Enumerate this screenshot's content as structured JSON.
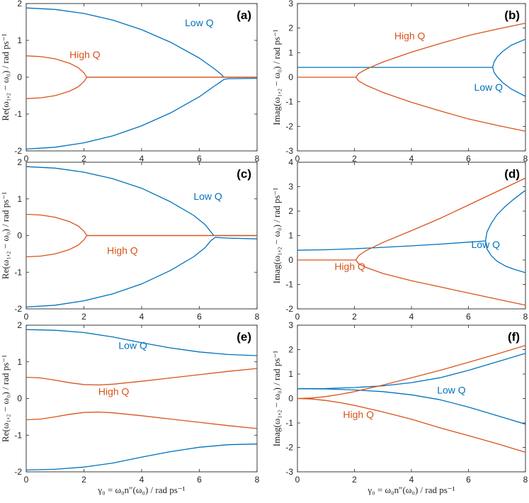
{
  "colors": {
    "low_q": "#0072BD",
    "high_q": "#D95319",
    "axis": "#262626"
  },
  "xaxis": {
    "ticks": [
      "0",
      "2",
      "4",
      "6",
      "8"
    ],
    "label": "γ₀ = ω₀n″(ω₀) / rad ps⁻¹",
    "xlim": [
      0,
      8
    ]
  },
  "chart_data": [
    {
      "id": "a",
      "panel_label": "(a)",
      "type": "line",
      "ylabel": "Re(ω₁,₂ − ω₀) / rad ps⁻¹",
      "ylim": [
        -2,
        2
      ],
      "yticks": [
        "-2",
        "-1",
        "0",
        "1",
        "2"
      ],
      "xlim": [
        0,
        8
      ],
      "xticks": [
        "0",
        "2",
        "4",
        "6",
        "8"
      ],
      "series": [
        {
          "name": "Low Q upper",
          "color_key": "low_q",
          "x": [
            0,
            1,
            2,
            3,
            4,
            5,
            6,
            6.5,
            6.75,
            6.85,
            7,
            8
          ],
          "y": [
            1.88,
            1.84,
            1.73,
            1.55,
            1.29,
            0.95,
            0.52,
            0.24,
            0.08,
            0.0,
            0.0,
            0.0
          ]
        },
        {
          "name": "Low Q lower",
          "color_key": "low_q",
          "x": [
            0,
            1,
            2,
            3,
            4,
            5,
            6,
            6.5,
            6.75,
            6.85,
            7,
            8
          ],
          "y": [
            -1.95,
            -1.9,
            -1.78,
            -1.59,
            -1.32,
            -0.97,
            -0.53,
            -0.25,
            -0.12,
            -0.06,
            -0.04,
            -0.03
          ]
        },
        {
          "name": "High Q upper",
          "color_key": "high_q",
          "x": [
            0,
            0.5,
            1,
            1.5,
            1.8,
            2.0,
            2.1,
            3,
            8
          ],
          "y": [
            0.58,
            0.56,
            0.5,
            0.38,
            0.26,
            0.12,
            0.0,
            0.0,
            0.0
          ]
        },
        {
          "name": "High Q lower",
          "color_key": "high_q",
          "x": [
            0,
            0.5,
            1,
            1.5,
            1.8,
            2.0,
            2.1,
            3,
            8
          ],
          "y": [
            -0.58,
            -0.56,
            -0.5,
            -0.38,
            -0.26,
            -0.12,
            0.0,
            0.0,
            0.0
          ]
        }
      ],
      "annotations": [
        {
          "text": "Low Q",
          "color_key": "low_q",
          "x": 5.5,
          "y": 1.38
        },
        {
          "text": "High Q",
          "color_key": "high_q",
          "x": 1.5,
          "y": 0.52
        }
      ]
    },
    {
      "id": "b",
      "panel_label": "(b)",
      "type": "line",
      "ylabel": "Imag(ω₁,₂ − ω₀) / rad ps⁻¹",
      "ylim": [
        -3,
        3
      ],
      "yticks": [
        "-3",
        "-2",
        "-1",
        "0",
        "1",
        "2",
        "3"
      ],
      "xlim": [
        0,
        8
      ],
      "xticks": [
        "0",
        "2",
        "4",
        "6",
        "8"
      ],
      "series": [
        {
          "name": "Low Q flat",
          "color_key": "low_q",
          "x": [
            0,
            4,
            6.85
          ],
          "y": [
            0.4,
            0.4,
            0.4
          ]
        },
        {
          "name": "Low Q upper",
          "color_key": "low_q",
          "x": [
            6.85,
            6.9,
            7.0,
            7.2,
            7.5,
            8
          ],
          "y": [
            0.4,
            0.62,
            0.82,
            1.05,
            1.3,
            1.55
          ]
        },
        {
          "name": "Low Q lower",
          "color_key": "low_q",
          "x": [
            6.85,
            6.9,
            7.0,
            7.2,
            7.5,
            8
          ],
          "y": [
            0.4,
            0.2,
            0.03,
            -0.22,
            -0.48,
            -0.78
          ]
        },
        {
          "name": "High Q flat",
          "color_key": "high_q",
          "x": [
            0,
            2.05
          ],
          "y": [
            0.0,
            0.0
          ]
        },
        {
          "name": "High Q upper",
          "color_key": "high_q",
          "x": [
            2.05,
            2.15,
            2.4,
            3,
            4,
            5,
            6,
            7,
            8
          ],
          "y": [
            0.0,
            0.15,
            0.32,
            0.62,
            1.02,
            1.37,
            1.7,
            1.96,
            2.2
          ]
        },
        {
          "name": "High Q lower",
          "color_key": "high_q",
          "x": [
            2.05,
            2.15,
            2.4,
            3,
            4,
            5,
            6,
            7,
            8
          ],
          "y": [
            0.0,
            -0.15,
            -0.32,
            -0.62,
            -1.02,
            -1.37,
            -1.7,
            -1.96,
            -2.2
          ]
        }
      ],
      "annotations": [
        {
          "text": "High Q",
          "color_key": "high_q",
          "x": 3.4,
          "y": 1.55
        },
        {
          "text": "Low Q",
          "color_key": "low_q",
          "x": 6.2,
          "y": -0.55
        }
      ]
    },
    {
      "id": "c",
      "panel_label": "(c)",
      "type": "line",
      "ylabel": "Re(ω₁,₂ − ω₀) / rad ps⁻¹",
      "ylim": [
        -2,
        2
      ],
      "yticks": [
        "-2",
        "-1",
        "0",
        "1",
        "2"
      ],
      "xlim": [
        0,
        8
      ],
      "xticks": [
        "0",
        "2",
        "4",
        "6",
        "8"
      ],
      "series": [
        {
          "name": "Low Q upper",
          "color_key": "low_q",
          "x": [
            0,
            1,
            2,
            3,
            4,
            5,
            5.8,
            6.2,
            6.4,
            6.5,
            8
          ],
          "y": [
            1.88,
            1.84,
            1.73,
            1.55,
            1.29,
            0.92,
            0.55,
            0.3,
            0.1,
            0.0,
            0.0
          ]
        },
        {
          "name": "Low Q lower",
          "color_key": "low_q",
          "x": [
            0,
            1,
            2,
            3,
            4,
            5,
            5.8,
            6.2,
            6.4,
            6.55,
            7,
            8
          ],
          "y": [
            -1.95,
            -1.9,
            -1.78,
            -1.59,
            -1.32,
            -0.95,
            -0.58,
            -0.33,
            -0.14,
            -0.05,
            -0.07,
            -0.09
          ]
        },
        {
          "name": "High Q upper",
          "color_key": "high_q",
          "x": [
            0,
            0.5,
            1,
            1.5,
            1.8,
            2.0,
            2.1,
            3,
            8
          ],
          "y": [
            0.58,
            0.56,
            0.5,
            0.38,
            0.26,
            0.12,
            0.0,
            0.0,
            0.0
          ]
        },
        {
          "name": "High Q lower",
          "color_key": "high_q",
          "x": [
            0,
            0.5,
            1,
            1.5,
            1.8,
            2.0,
            2.1,
            3,
            8
          ],
          "y": [
            -0.58,
            -0.56,
            -0.5,
            -0.38,
            -0.26,
            -0.12,
            0.0,
            0.0,
            0.0
          ]
        }
      ],
      "annotations": [
        {
          "text": "Low Q",
          "color_key": "low_q",
          "x": 5.8,
          "y": 0.98
        },
        {
          "text": "High Q",
          "color_key": "high_q",
          "x": 2.8,
          "y": -0.5
        }
      ]
    },
    {
      "id": "d",
      "panel_label": "(d)",
      "type": "line",
      "ylabel": "Imag(ω₁,₂ − ω₀) / rad ps⁻¹",
      "ylim": [
        -2,
        4
      ],
      "yticks": [
        "-2",
        "-1",
        "0",
        "1",
        "2",
        "3",
        "4"
      ],
      "xlim": [
        0,
        8
      ],
      "xticks": [
        "0",
        "2",
        "4",
        "6",
        "8"
      ],
      "series": [
        {
          "name": "Low Q rising",
          "color_key": "low_q",
          "x": [
            0,
            1,
            2,
            3,
            4,
            5,
            6,
            6.6
          ],
          "y": [
            0.4,
            0.42,
            0.46,
            0.52,
            0.58,
            0.65,
            0.73,
            0.78
          ]
        },
        {
          "name": "Low Q upper",
          "color_key": "low_q",
          "x": [
            6.6,
            6.65,
            6.8,
            7.0,
            7.3,
            7.6,
            8
          ],
          "y": [
            0.78,
            1.15,
            1.5,
            1.85,
            2.2,
            2.5,
            2.85
          ]
        },
        {
          "name": "Low Q lower",
          "color_key": "low_q",
          "x": [
            6.6,
            6.65,
            6.8,
            7.0,
            7.3,
            7.6,
            8
          ],
          "y": [
            0.78,
            0.45,
            0.18,
            -0.05,
            -0.25,
            -0.38,
            -0.52
          ]
        },
        {
          "name": "High Q flat",
          "color_key": "high_q",
          "x": [
            0,
            2.05
          ],
          "y": [
            0.0,
            0.0
          ]
        },
        {
          "name": "High Q upper",
          "color_key": "high_q",
          "x": [
            2.05,
            2.15,
            2.4,
            3,
            4,
            5,
            6,
            7,
            8
          ],
          "y": [
            0.0,
            0.18,
            0.38,
            0.72,
            1.2,
            1.7,
            2.25,
            2.8,
            3.35
          ]
        },
        {
          "name": "High Q lower",
          "color_key": "high_q",
          "x": [
            2.05,
            2.15,
            2.4,
            3,
            4,
            5,
            6,
            7,
            8
          ],
          "y": [
            0.0,
            -0.15,
            -0.3,
            -0.55,
            -0.85,
            -1.1,
            -1.35,
            -1.6,
            -1.85
          ]
        }
      ],
      "annotations": [
        {
          "text": "Low Q",
          "color_key": "low_q",
          "x": 6.1,
          "y": 0.5
        },
        {
          "text": "High Q",
          "color_key": "high_q",
          "x": 1.3,
          "y": -0.4
        }
      ]
    },
    {
      "id": "e",
      "panel_label": "(e)",
      "type": "line",
      "ylabel": "Re(ω₁,₂ − ω₀) / rad ps⁻¹",
      "ylim": [
        -2,
        2
      ],
      "yticks": [
        "-2",
        "-1",
        "0",
        "1",
        "2"
      ],
      "xlim": [
        0,
        8
      ],
      "xticks": [
        "0",
        "2",
        "4",
        "6",
        "8"
      ],
      "series": [
        {
          "name": "Low Q upper",
          "color_key": "low_q",
          "x": [
            0,
            1,
            2,
            3,
            4,
            5,
            6,
            7,
            8
          ],
          "y": [
            1.88,
            1.86,
            1.8,
            1.68,
            1.52,
            1.38,
            1.27,
            1.2,
            1.17
          ]
        },
        {
          "name": "Low Q lower",
          "color_key": "low_q",
          "x": [
            0,
            1,
            2,
            3,
            4,
            5,
            6,
            7,
            8
          ],
          "y": [
            -1.95,
            -1.93,
            -1.87,
            -1.76,
            -1.6,
            -1.45,
            -1.33,
            -1.26,
            -1.24
          ]
        },
        {
          "name": "High Q upper",
          "color_key": "high_q",
          "x": [
            0,
            0.5,
            1,
            1.5,
            2,
            2.5,
            3,
            4,
            5,
            6,
            7,
            8
          ],
          "y": [
            0.58,
            0.56,
            0.5,
            0.43,
            0.38,
            0.37,
            0.39,
            0.47,
            0.56,
            0.65,
            0.74,
            0.82
          ]
        },
        {
          "name": "High Q lower",
          "color_key": "high_q",
          "x": [
            0,
            0.5,
            1,
            1.5,
            2,
            2.5,
            3,
            4,
            5,
            6,
            7,
            8
          ],
          "y": [
            -0.58,
            -0.56,
            -0.5,
            -0.43,
            -0.38,
            -0.37,
            -0.39,
            -0.47,
            -0.56,
            -0.65,
            -0.74,
            -0.82
          ]
        }
      ],
      "annotations": [
        {
          "text": "Low Q",
          "color_key": "low_q",
          "x": 3.2,
          "y": 1.35
        },
        {
          "text": "High Q",
          "color_key": "high_q",
          "x": 2.5,
          "y": 0.1
        }
      ]
    },
    {
      "id": "f",
      "panel_label": "(f)",
      "type": "line",
      "ylabel": "Imag(ω₁,₂ − ω₀) / rad ps⁻¹",
      "ylim": [
        -3,
        3
      ],
      "yticks": [
        "-3",
        "-2",
        "-1",
        "0",
        "1",
        "2",
        "3"
      ],
      "xlim": [
        0,
        8
      ],
      "xticks": [
        "0",
        "2",
        "4",
        "6",
        "8"
      ],
      "series": [
        {
          "name": "Low Q upper",
          "color_key": "low_q",
          "x": [
            0,
            1,
            2,
            3,
            4,
            5,
            6,
            7,
            8
          ],
          "y": [
            0.4,
            0.41,
            0.45,
            0.52,
            0.65,
            0.85,
            1.15,
            1.5,
            1.85
          ]
        },
        {
          "name": "Low Q lower",
          "color_key": "low_q",
          "x": [
            0,
            1,
            2,
            3,
            4,
            5,
            6,
            7,
            8
          ],
          "y": [
            0.4,
            0.39,
            0.35,
            0.28,
            0.15,
            -0.05,
            -0.35,
            -0.7,
            -1.05
          ]
        },
        {
          "name": "High Q upper",
          "color_key": "high_q",
          "x": [
            0,
            0.5,
            1,
            1.5,
            2,
            3,
            4,
            5,
            6,
            7,
            8
          ],
          "y": [
            0.0,
            0.02,
            0.08,
            0.17,
            0.28,
            0.55,
            0.85,
            1.15,
            1.48,
            1.82,
            2.17
          ]
        },
        {
          "name": "High Q lower",
          "color_key": "high_q",
          "x": [
            0,
            0.5,
            1,
            1.5,
            2,
            3,
            4,
            5,
            6,
            7,
            8
          ],
          "y": [
            0.0,
            -0.02,
            -0.08,
            -0.17,
            -0.28,
            -0.55,
            -0.85,
            -1.2,
            -1.52,
            -1.85,
            -2.2
          ]
        }
      ],
      "annotations": [
        {
          "text": "Low Q",
          "color_key": "low_q",
          "x": 4.9,
          "y": 0.2
        },
        {
          "text": "High Q",
          "color_key": "high_q",
          "x": 1.6,
          "y": -0.8
        }
      ]
    }
  ]
}
